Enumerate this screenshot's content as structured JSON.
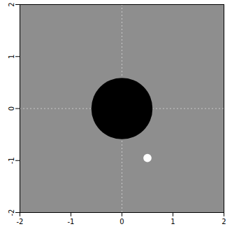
{
  "chart_data": {
    "type": "scatter",
    "xlim": [
      -2,
      2
    ],
    "ylim": [
      -2,
      2
    ],
    "xticks": [
      -2,
      -1,
      0,
      1,
      2
    ],
    "yticks": [
      -2,
      -1,
      0,
      1,
      2
    ],
    "crosshair": {
      "x": 0,
      "y": 0
    },
    "points": [
      {
        "x": 0,
        "y": 0,
        "radius": 0.6,
        "color": "#000000"
      },
      {
        "x": 0.5,
        "y": -0.95,
        "radius": 0.08,
        "color": "#ffffff"
      }
    ]
  }
}
